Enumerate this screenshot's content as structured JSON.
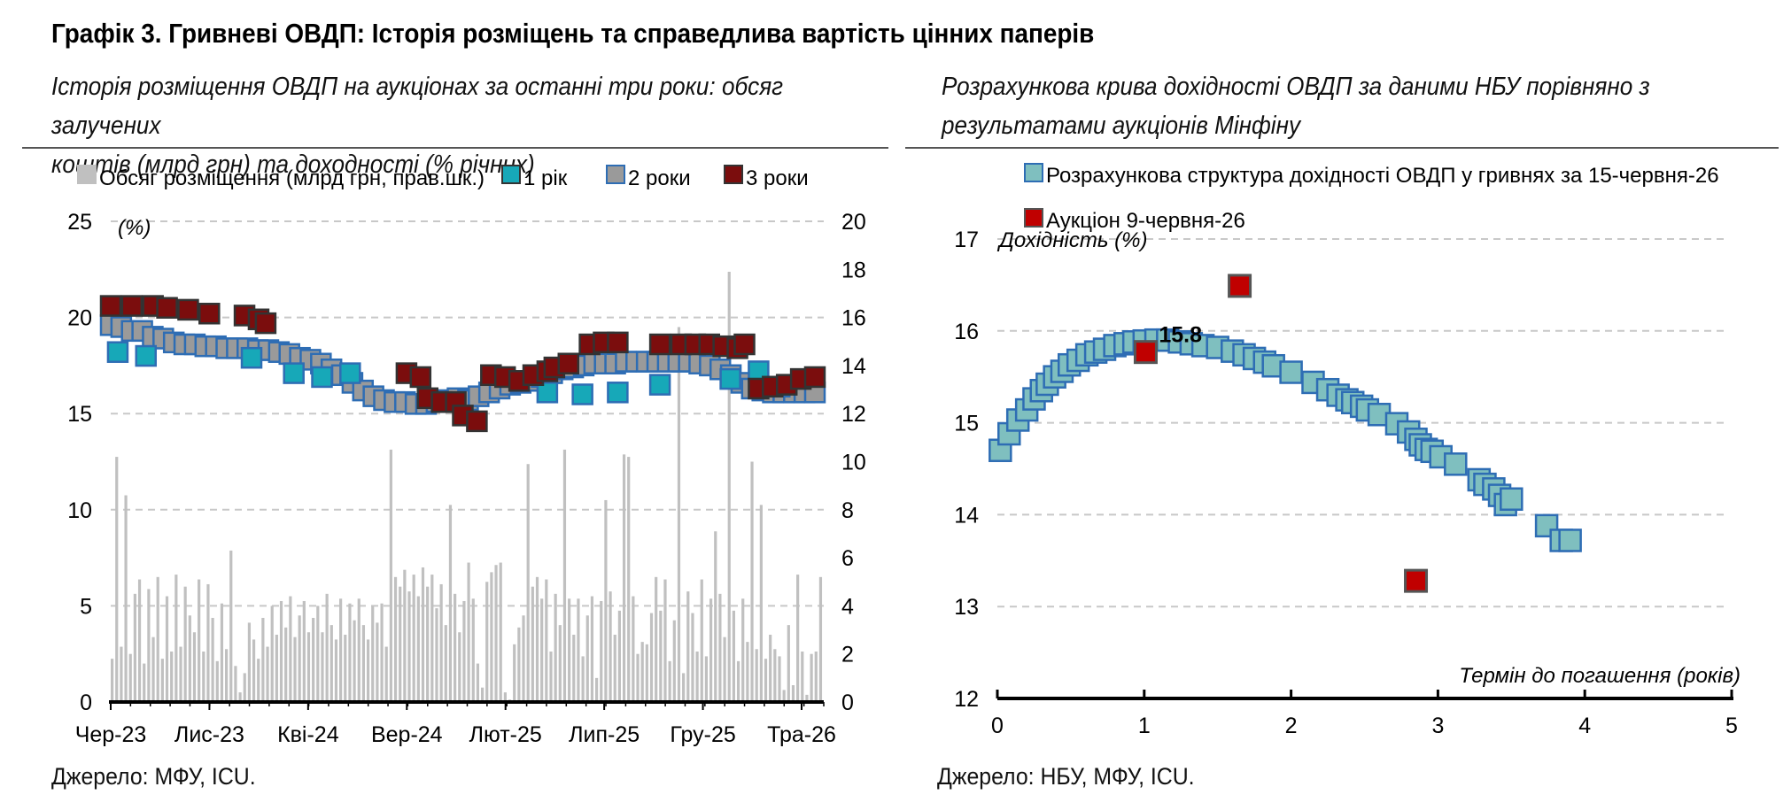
{
  "title": "Графік 3. Гривневі ОВДП: Історія розміщень та справедлива вартість цінних паперів",
  "left": {
    "subtitle_line1": "Історія розміщення ОВДП на аукціонах за останні три роки: обсяг залучених",
    "subtitle_line2": "коштів (млрд грн) та доходності (% річних)",
    "source": "Джерело: МФУ, ICU.",
    "legend": [
      "Обсяг розміщення (млрд грн, прав.шк.)",
      "1 рік",
      "2 роки",
      "3 роки"
    ],
    "y_unit": "(%)",
    "x_labels": [
      "Чер-23",
      "Лис-23",
      "Кві-24",
      "Вер-24",
      "Лют-25",
      "Лип-25",
      "Гру-25",
      "Тра-26"
    ],
    "y_left_ticks": [
      "25",
      "20",
      "15",
      "10",
      "5",
      "0"
    ],
    "y_right_ticks": [
      "20",
      "18",
      "16",
      "14",
      "12",
      "10",
      "8",
      "6",
      "4",
      "2",
      "0"
    ]
  },
  "right": {
    "subtitle_line1": "Розрахункова крива дохідності ОВДП за даними НБУ порівняно з",
    "subtitle_line2": "результатами аукціонів Мінфіну",
    "source": "Джерело: НБУ, МФУ, ICU.",
    "legend": [
      "Розрахункова структура дохідності ОВДП у гривнях за 15-червня-26",
      "Аукціон 9-червня-26"
    ],
    "y_label": "Дохідність (%)",
    "x_label": "Термін до погашення (років)",
    "annotation": "15.8",
    "x_ticks": [
      "0",
      "1",
      "2",
      "3",
      "4",
      "5"
    ],
    "y_ticks": [
      "17",
      "16",
      "15",
      "14",
      "13",
      "12"
    ]
  },
  "colors": {
    "volume": "#c0c0c0",
    "y1": "#17a8b8",
    "y2": "#9a9a9a",
    "y2_edge": "#2e6db4",
    "y3": "#7b0d0d",
    "curve": "#7fbfbf",
    "curve_edge": "#2e6db4",
    "auction": "#c00000"
  },
  "chart_data": [
    {
      "type": "bar+scatter",
      "x_range": [
        "2023-06",
        "2026-06"
      ],
      "ylim_left": [
        0,
        25
      ],
      "ylim_right": [
        0,
        20
      ],
      "grid": true,
      "legend_position": "top",
      "series": [
        {
          "name": "Обсяг розміщення (млрд грн, прав.шк.)",
          "axis": "right",
          "kind": "bar",
          "values": [
            1.8,
            10.2,
            2.3,
            8.6,
            2.0,
            4.5,
            5.1,
            1.6,
            4.7,
            2.7,
            5.2,
            1.8,
            4.4,
            2.1,
            5.3,
            2.3,
            4.8,
            3.6,
            2.9,
            5.1,
            2.1,
            4.9,
            3.5,
            1.7,
            4.1,
            2.2,
            6.3,
            1.5,
            0.4,
            1.2,
            3.3,
            2.6,
            1.8,
            3.5,
            2.3,
            4.0,
            2.8,
            4.2,
            3.1,
            4.4,
            2.7,
            3.6,
            4.2,
            2.9,
            3.5,
            4.0,
            2.9,
            4.5,
            3.2,
            2.6,
            4.3,
            2.8,
            4.1,
            3.4,
            4.3,
            3.2,
            2.6,
            4.0,
            3.3,
            4.1,
            2.3,
            10.5,
            5.2,
            4.8,
            5.5,
            4.6,
            5.3,
            4.4,
            5.6,
            4.8,
            5.3,
            3.9,
            4.9,
            3.2,
            8.2,
            4.5,
            2.9,
            4.2,
            5.8,
            4.3,
            1.6,
            0.6,
            5.0,
            5.4,
            5.7,
            5.8,
            0.4,
            0.1,
            2.4,
            3.1,
            3.6,
            9.9,
            4.8,
            5.2,
            4.3,
            5.1,
            2.1,
            4.5,
            3.2,
            10.5,
            4.3,
            2.8,
            4.3,
            1.9,
            3.6,
            4.4,
            1.0,
            4.2,
            8.4,
            4.6,
            2.8,
            3.8,
            10.3,
            10.2,
            4.4,
            2.0,
            2.5,
            2.4,
            3.7,
            5.2,
            3.8,
            5.1,
            1.7,
            3.4,
            15.6,
            1.2,
            4.6,
            3.7,
            2.1,
            5.1,
            1.9,
            4.3,
            7.1,
            4.5,
            2.7,
            17.9,
            3.8,
            1.7,
            4.3,
            2.5,
            10.0,
            2.2,
            8.2,
            1.8,
            2.8,
            2.2,
            1.9,
            0.5,
            3.2,
            0.7,
            5.3,
            2.1,
            0.3,
            2.0,
            2.1,
            5.2
          ]
        },
        {
          "name": "2 роки",
          "axis": "left",
          "kind": "scatter",
          "y_range_observed": [
            15.2,
            19.8
          ],
          "values": [
            19.6,
            19.5,
            19.3,
            19.3,
            19.0,
            18.9,
            18.7,
            18.6,
            18.6,
            18.5,
            18.5,
            18.4,
            18.4,
            18.4,
            18.3,
            18.3,
            18.2,
            18.1,
            17.9,
            17.8,
            17.6,
            17.3,
            17.0,
            16.6,
            16.2,
            15.9,
            15.7,
            15.6,
            15.6,
            15.5,
            15.5,
            15.6,
            15.7,
            15.8,
            15.7,
            15.9,
            16.1,
            16.3,
            16.5,
            16.6,
            16.7,
            16.9,
            17.1,
            17.3,
            17.4,
            17.5,
            17.6,
            17.6,
            17.6,
            17.7,
            17.7,
            17.7,
            17.7,
            17.7,
            17.7,
            17.7,
            17.6,
            17.5,
            17.3,
            17.0,
            16.6,
            16.3,
            16.2,
            16.1,
            16.1,
            16.1,
            16.1,
            16.1
          ]
        },
        {
          "name": "1 рік",
          "axis": "left",
          "kind": "scatter",
          "points": [
            [
              0.01,
              18.2
            ],
            [
              0.05,
              18.0
            ],
            [
              0.2,
              17.9
            ],
            [
              0.26,
              17.1
            ],
            [
              0.3,
              16.9
            ],
            [
              0.34,
              17.1
            ],
            [
              0.62,
              16.1
            ],
            [
              0.67,
              16.0
            ],
            [
              0.72,
              16.1
            ],
            [
              0.78,
              16.5
            ],
            [
              0.88,
              16.8
            ],
            [
              0.92,
              17.2
            ],
            [
              0.95,
              16.4
            ]
          ]
        },
        {
          "name": "3 роки",
          "axis": "left",
          "kind": "scatter",
          "points": [
            [
              0.0,
              20.6
            ],
            [
              0.03,
              20.6
            ],
            [
              0.06,
              20.6
            ],
            [
              0.08,
              20.5
            ],
            [
              0.11,
              20.4
            ],
            [
              0.14,
              20.2
            ],
            [
              0.19,
              20.1
            ],
            [
              0.21,
              19.9
            ],
            [
              0.22,
              19.7
            ],
            [
              0.42,
              17.1
            ],
            [
              0.44,
              16.9
            ],
            [
              0.45,
              15.8
            ],
            [
              0.47,
              15.6
            ],
            [
              0.49,
              15.6
            ],
            [
              0.5,
              14.9
            ],
            [
              0.52,
              14.6
            ],
            [
              0.54,
              17.0
            ],
            [
              0.56,
              16.9
            ],
            [
              0.58,
              16.7
            ],
            [
              0.6,
              17.0
            ],
            [
              0.62,
              17.2
            ],
            [
              0.63,
              17.4
            ],
            [
              0.65,
              17.6
            ],
            [
              0.68,
              18.6
            ],
            [
              0.7,
              18.7
            ],
            [
              0.72,
              18.7
            ],
            [
              0.78,
              18.6
            ],
            [
              0.81,
              18.6
            ],
            [
              0.83,
              18.6
            ],
            [
              0.85,
              18.6
            ],
            [
              0.87,
              18.5
            ],
            [
              0.89,
              18.4
            ],
            [
              0.9,
              18.6
            ],
            [
              0.92,
              16.3
            ],
            [
              0.94,
              16.4
            ],
            [
              0.96,
              16.5
            ],
            [
              0.98,
              16.8
            ],
            [
              1.0,
              16.9
            ]
          ]
        }
      ]
    },
    {
      "type": "scatter",
      "xlabel": "Термін до погашення (років)",
      "ylabel": "Дохідність (%)",
      "xlim": [
        0,
        5
      ],
      "ylim": [
        12,
        17
      ],
      "grid": true,
      "legend_position": "top",
      "series": [
        {
          "name": "Розрахункова структура дохідності ОВДП у гривнях за 15-червня-26",
          "points": [
            [
              0.02,
              14.7
            ],
            [
              0.08,
              14.88
            ],
            [
              0.14,
              15.03
            ],
            [
              0.2,
              15.14
            ],
            [
              0.25,
              15.26
            ],
            [
              0.3,
              15.35
            ],
            [
              0.34,
              15.42
            ],
            [
              0.39,
              15.5
            ],
            [
              0.44,
              15.56
            ],
            [
              0.49,
              15.63
            ],
            [
              0.55,
              15.68
            ],
            [
              0.61,
              15.74
            ],
            [
              0.67,
              15.77
            ],
            [
              0.73,
              15.8
            ],
            [
              0.8,
              15.84
            ],
            [
              0.87,
              15.86
            ],
            [
              0.93,
              15.88
            ],
            [
              1.0,
              15.89
            ],
            [
              1.08,
              15.9
            ],
            [
              1.16,
              15.9
            ],
            [
              1.24,
              15.88
            ],
            [
              1.32,
              15.86
            ],
            [
              1.4,
              15.84
            ],
            [
              1.5,
              15.82
            ],
            [
              1.6,
              15.78
            ],
            [
              1.68,
              15.74
            ],
            [
              1.75,
              15.7
            ],
            [
              1.82,
              15.66
            ],
            [
              1.88,
              15.62
            ],
            [
              2.0,
              15.55
            ],
            [
              2.15,
              15.44
            ],
            [
              2.25,
              15.36
            ],
            [
              2.32,
              15.3
            ],
            [
              2.38,
              15.25
            ],
            [
              2.42,
              15.22
            ],
            [
              2.48,
              15.18
            ],
            [
              2.52,
              15.14
            ],
            [
              2.6,
              15.09
            ],
            [
              2.72,
              14.99
            ],
            [
              2.8,
              14.9
            ],
            [
              2.85,
              14.82
            ],
            [
              2.88,
              14.76
            ],
            [
              2.92,
              14.71
            ],
            [
              2.96,
              14.69
            ],
            [
              3.02,
              14.63
            ],
            [
              3.12,
              14.55
            ],
            [
              3.28,
              14.38
            ],
            [
              3.32,
              14.33
            ],
            [
              3.38,
              14.28
            ],
            [
              3.42,
              14.21
            ],
            [
              3.46,
              14.11
            ],
            [
              3.5,
              14.17
            ],
            [
              3.74,
              13.88
            ],
            [
              3.84,
              13.72
            ],
            [
              3.9,
              13.72
            ]
          ]
        },
        {
          "name": "Аукціон 9-червня-26",
          "points": [
            [
              1.01,
              15.77
            ],
            [
              1.65,
              16.49
            ],
            [
              2.85,
              13.28
            ]
          ]
        }
      ]
    }
  ]
}
